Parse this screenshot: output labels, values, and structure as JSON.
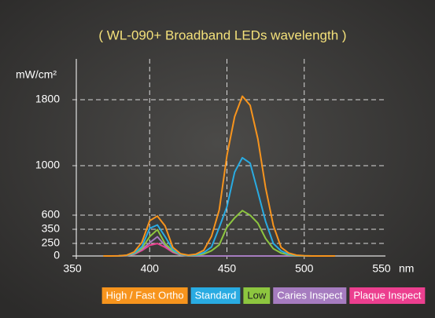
{
  "chart_data": {
    "type": "line",
    "title": "( WL-090+  Broadband LEDs wavelength )",
    "y_label": "mW/cm²",
    "x_label": "nm",
    "x": [
      370,
      375,
      380,
      385,
      390,
      395,
      400,
      405,
      410,
      415,
      420,
      425,
      430,
      435,
      440,
      445,
      450,
      455,
      460,
      465,
      470,
      475,
      480,
      485,
      490,
      495,
      500,
      505,
      510,
      515,
      520
    ],
    "series": [
      {
        "name": "High / Fast Ortho",
        "color": "#f7941d",
        "values": [
          0,
          0,
          2,
          15,
          80,
          258,
          502,
          584,
          409,
          172,
          45,
          15,
          36,
          113,
          300,
          642,
          1123,
          1595,
          1843,
          1732,
          1325,
          823,
          416,
          172,
          57,
          16,
          4,
          0,
          0,
          0,
          0
        ]
      },
      {
        "name": "Standard",
        "color": "#29abe2",
        "values": [
          0,
          0,
          1,
          11,
          58,
          188,
          366,
          426,
          298,
          125,
          32,
          10,
          21,
          67,
          178,
          382,
          668,
          948,
          1096,
          1030,
          788,
          490,
          248,
          102,
          34,
          9,
          2,
          0,
          0,
          0,
          0
        ]
      },
      {
        "name": "Low",
        "color": "#8dc63f",
        "values": [
          0,
          0,
          1,
          9,
          47,
          153,
          298,
          347,
          243,
          102,
          27,
          7,
          12,
          39,
          104,
          222,
          388,
          552,
          637,
          599,
          458,
          285,
          144,
          60,
          20,
          5,
          1,
          0,
          0,
          0,
          0
        ]
      },
      {
        "name": "Caries Inspect",
        "color": "#a67cc0",
        "values": [
          0,
          0,
          1,
          8,
          41,
          131,
          255,
          297,
          208,
          87,
          22,
          3,
          0,
          0,
          0,
          0,
          0,
          0,
          0,
          0,
          0,
          0,
          0,
          0,
          0,
          0,
          0,
          0,
          0,
          0,
          0
        ]
      },
      {
        "name": "Plaque Inspect",
        "color": "#ec3f8f",
        "values": [
          0,
          0,
          1,
          6,
          34,
          109,
          213,
          248,
          173,
          73,
          18,
          3,
          0,
          0,
          0,
          0,
          0,
          0,
          0,
          0,
          0,
          0,
          0,
          0,
          0,
          0,
          0,
          0,
          0,
          0,
          0
        ]
      }
    ],
    "xlim": [
      350,
      550
    ],
    "xticks": [
      350,
      400,
      450,
      500,
      550
    ],
    "yticks": [
      0,
      250,
      350,
      600,
      1000,
      1800
    ],
    "grid": true
  }
}
